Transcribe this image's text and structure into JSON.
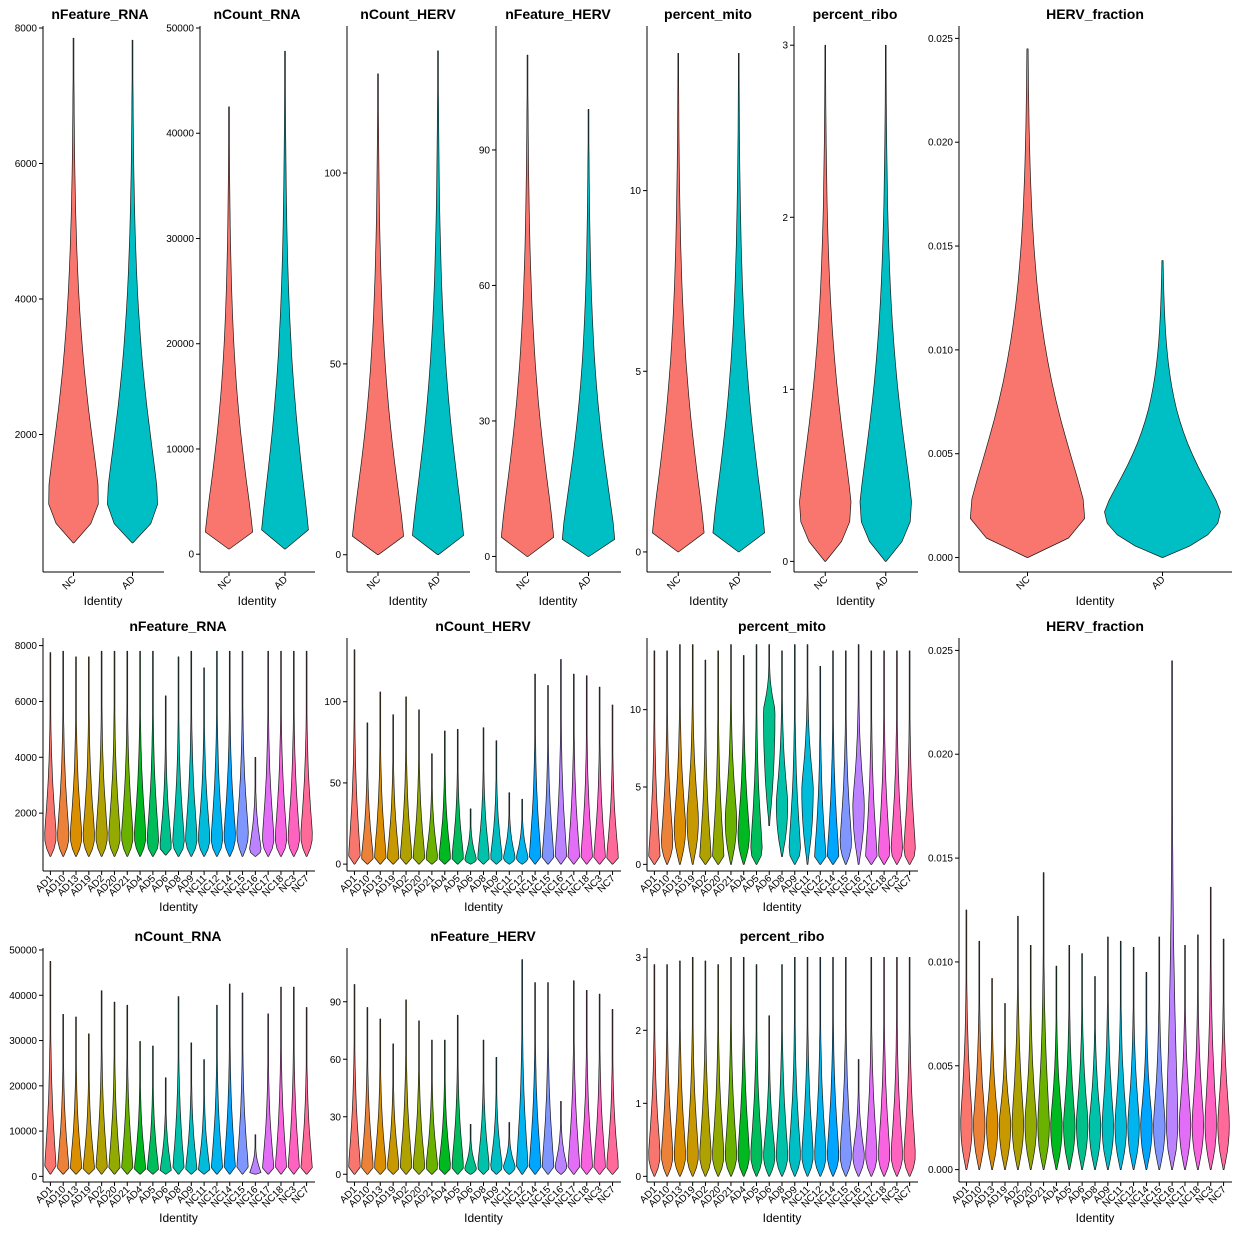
{
  "chart_data": [
    {
      "type": "violin",
      "id": "top-nFeature_RNA",
      "title": "nFeature_RNA",
      "xlabel": "Identity",
      "ylim": [
        0,
        8000
      ],
      "yticks": [
        2000,
        4000,
        6000,
        8000
      ],
      "ytick_labels": [
        "2000",
        "4000",
        "6000",
        "8000"
      ],
      "categories": [
        "NC",
        "AD"
      ],
      "colors": [
        "#F8766D",
        "#00BFC4"
      ],
      "min": [
        400,
        400
      ],
      "max": [
        7850,
        7820
      ],
      "peak": [
        1100,
        1050
      ]
    },
    {
      "type": "violin",
      "id": "top-nCount_RNA",
      "title": "nCount_RNA",
      "xlabel": "Identity",
      "ylim": [
        -1500,
        50000
      ],
      "yticks": [
        0,
        10000,
        20000,
        30000,
        40000,
        50000
      ],
      "ytick_labels": [
        "0",
        "10000",
        "20000",
        "30000",
        "40000",
        "50000"
      ],
      "categories": [
        "NC",
        "AD"
      ],
      "colors": [
        "#F8766D",
        "#00BFC4"
      ],
      "min": [
        500,
        500
      ],
      "max": [
        42500,
        47800
      ],
      "peak": [
        1600,
        1400
      ]
    },
    {
      "type": "violin",
      "id": "top-nCount_HERV",
      "title": "nCount_HERV",
      "xlabel": "Identity",
      "ylim": [
        -4,
        138
      ],
      "yticks": [
        0,
        50,
        100
      ],
      "ytick_labels": [
        "0",
        "50",
        "100"
      ],
      "categories": [
        "NC",
        "AD"
      ],
      "colors": [
        "#F8766D",
        "#00BFC4"
      ],
      "min": [
        0,
        0
      ],
      "max": [
        126,
        132
      ],
      "peak": [
        4,
        4
      ]
    },
    {
      "type": "violin",
      "id": "top-nFeature_HERV",
      "title": "nFeature_HERV",
      "xlabel": "Identity",
      "ylim": [
        -3,
        117
      ],
      "yticks": [
        0,
        30,
        60,
        90
      ],
      "ytick_labels": [
        "0",
        "30",
        "60",
        "90"
      ],
      "categories": [
        "NC",
        "AD"
      ],
      "colors": [
        "#F8766D",
        "#00BFC4"
      ],
      "min": [
        0,
        0
      ],
      "max": [
        111,
        99
      ],
      "peak": [
        4,
        4
      ]
    },
    {
      "type": "violin",
      "id": "top-percent_mito",
      "title": "percent_mito",
      "xlabel": "Identity",
      "ylim": [
        -0.5,
        14.5
      ],
      "yticks": [
        0,
        5,
        10
      ],
      "ytick_labels": [
        "0",
        "5",
        "10"
      ],
      "categories": [
        "NC",
        "AD"
      ],
      "colors": [
        "#F8766D",
        "#00BFC4"
      ],
      "min": [
        0,
        0
      ],
      "max": [
        13.8,
        13.8
      ],
      "peak": [
        0.45,
        0.45
      ]
    },
    {
      "type": "violin",
      "id": "top-percent_ribo",
      "title": "percent_ribo",
      "xlabel": "Identity",
      "ylim": [
        -0.05,
        3.1
      ],
      "yticks": [
        0,
        1,
        2,
        3
      ],
      "ytick_labels": [
        "0",
        "1",
        "2",
        "3"
      ],
      "categories": [
        "NC",
        "AD"
      ],
      "colors": [
        "#F8766D",
        "#00BFC4"
      ],
      "min": [
        0,
        0
      ],
      "max": [
        3.0,
        3.0
      ],
      "peak": [
        0.32,
        0.32
      ]
    },
    {
      "type": "violin",
      "id": "top-HERV_fraction",
      "title": "HERV_fraction",
      "xlabel": "Identity",
      "ylim": [
        -0.0006,
        0.0255
      ],
      "yticks": [
        0,
        0.005,
        0.01,
        0.015,
        0.02,
        0.025
      ],
      "ytick_labels": [
        "0.000",
        "0.005",
        "0.010",
        "0.015",
        "0.020",
        "0.025"
      ],
      "categories": [
        "NC",
        "AD"
      ],
      "colors": [
        "#F8766D",
        "#00BFC4"
      ],
      "min": [
        0,
        0
      ],
      "max": [
        0.0245,
        0.0143
      ],
      "peak": [
        0.0022,
        0.0022
      ]
    },
    {
      "type": "violin",
      "id": "mid-nFeature_RNA",
      "title": "nFeature_RNA",
      "xlabel": "Identity",
      "ylim": [
        0,
        8200
      ],
      "yticks": [
        2000,
        4000,
        6000,
        8000
      ],
      "ytick_labels": [
        "2000",
        "4000",
        "6000",
        "8000"
      ],
      "categories": [
        "AD1",
        "AD10",
        "AD13",
        "AD19",
        "AD2",
        "AD20",
        "AD21",
        "AD4",
        "AD5",
        "AD6",
        "AD8",
        "AD9",
        "NC11",
        "NC12",
        "NC14",
        "NC15",
        "NC16",
        "NC17",
        "NC18",
        "NC3",
        "NC7"
      ],
      "colors": [
        "#F8766D",
        "#EC8239",
        "#DB8E00",
        "#C79800",
        "#AFA100",
        "#93AA00",
        "#6BB100",
        "#00B81F",
        "#00BD5C",
        "#00C08B",
        "#00C1AA",
        "#00BFC4",
        "#00BBDA",
        "#00B4EF",
        "#00A5FF",
        "#7F96FF",
        "#BB83FF",
        "#E26EF7",
        "#F863DF",
        "#FF62BF",
        "#FF6A9A"
      ],
      "min": [
        450,
        450,
        450,
        450,
        450,
        450,
        450,
        450,
        450,
        500,
        450,
        450,
        450,
        450,
        450,
        450,
        450,
        450,
        450,
        450,
        450
      ],
      "max": [
        7750,
        7800,
        7600,
        7600,
        7800,
        7800,
        7800,
        7800,
        7800,
        6200,
        7600,
        7800,
        7200,
        7800,
        7800,
        7800,
        4000,
        7800,
        7800,
        7800,
        7800
      ],
      "peak": [
        1200,
        1200,
        1200,
        1200,
        1200,
        1200,
        1200,
        1200,
        1000,
        800,
        1000,
        1100,
        1100,
        1100,
        1200,
        1300,
        700,
        1100,
        1100,
        1100,
        1200
      ]
    },
    {
      "type": "violin",
      "id": "mid-nCount_HERV",
      "title": "nCount_HERV",
      "xlabel": "Identity",
      "ylim": [
        -3,
        138
      ],
      "yticks": [
        0,
        50,
        100
      ],
      "ytick_labels": [
        "0",
        "50",
        "100"
      ],
      "categories": [
        "AD1",
        "AD10",
        "AD13",
        "AD19",
        "AD2",
        "AD20",
        "AD21",
        "AD4",
        "AD5",
        "AD6",
        "AD8",
        "AD9",
        "NC11",
        "NC12",
        "NC14",
        "NC15",
        "NC16",
        "NC17",
        "NC18",
        "NC3",
        "NC7"
      ],
      "colors": [
        "#F8766D",
        "#EC8239",
        "#DB8E00",
        "#C79800",
        "#AFA100",
        "#93AA00",
        "#6BB100",
        "#00B81F",
        "#00BD5C",
        "#00C08B",
        "#00C1AA",
        "#00BFC4",
        "#00BBDA",
        "#00B4EF",
        "#00A5FF",
        "#7F96FF",
        "#BB83FF",
        "#E26EF7",
        "#F863DF",
        "#FF62BF",
        "#FF6A9A"
      ],
      "min": [
        0,
        0,
        0,
        0,
        0,
        0,
        0,
        0,
        0,
        0,
        0,
        0,
        0,
        0,
        0,
        0,
        0,
        0,
        0,
        0,
        0
      ],
      "max": [
        132,
        87,
        106,
        92,
        103,
        95,
        68,
        82,
        83,
        34,
        84,
        76,
        44,
        40,
        117,
        110,
        126,
        117,
        116,
        109,
        98
      ],
      "peak": [
        4,
        4,
        4,
        4,
        4,
        4,
        4,
        4,
        4,
        3,
        4,
        4,
        4,
        4,
        4,
        4,
        4,
        4,
        4,
        4,
        4
      ]
    },
    {
      "type": "violin",
      "id": "mid-percent_mito",
      "title": "percent_mito",
      "xlabel": "Identity",
      "ylim": [
        -0.3,
        14.5
      ],
      "yticks": [
        0,
        5,
        10
      ],
      "ytick_labels": [
        "0",
        "5",
        "10"
      ],
      "categories": [
        "AD1",
        "AD10",
        "AD13",
        "AD19",
        "AD2",
        "AD20",
        "AD21",
        "AD4",
        "AD5",
        "AD6",
        "AD8",
        "AD9",
        "NC11",
        "NC12",
        "NC14",
        "NC15",
        "NC16",
        "NC17",
        "NC18",
        "NC3",
        "NC7"
      ],
      "colors": [
        "#F8766D",
        "#EC8239",
        "#DB8E00",
        "#C79800",
        "#AFA100",
        "#93AA00",
        "#6BB100",
        "#00B81F",
        "#00BD5C",
        "#00C08B",
        "#00C1AA",
        "#00BFC4",
        "#00BBDA",
        "#00B4EF",
        "#00A5FF",
        "#7F96FF",
        "#BB83FF",
        "#E26EF7",
        "#F863DF",
        "#FF62BF",
        "#FF6A9A"
      ],
      "min": [
        0,
        0,
        0,
        0,
        0,
        0,
        0,
        0,
        0,
        2.5,
        0.5,
        0,
        0,
        0,
        0,
        0,
        0,
        0,
        0,
        0,
        0
      ],
      "max": [
        13.8,
        13.8,
        14.2,
        14.2,
        13.2,
        13.8,
        14.2,
        13.5,
        14.2,
        14.2,
        13.8,
        14.2,
        14.2,
        12.8,
        13.8,
        13.8,
        14.2,
        13.8,
        13.8,
        13.8,
        13.8
      ],
      "peak": [
        0.4,
        1.5,
        2.5,
        3,
        0.4,
        0.5,
        3,
        2,
        1,
        10,
        4,
        1,
        5,
        0.4,
        0.5,
        1.5,
        4,
        0.5,
        0.8,
        1,
        1
      ]
    },
    {
      "type": "violin",
      "id": "mid-HERV_fraction",
      "title": "HERV_fraction",
      "xlabel": "Identity",
      "ylim": [
        -0.0005,
        0.0255
      ],
      "yticks": [
        0,
        0.005,
        0.01,
        0.015,
        0.02,
        0.025
      ],
      "ytick_labels": [
        "0.000",
        "0.005",
        "0.010",
        "0.015",
        "0.020",
        "0.025"
      ],
      "categories": [
        "AD1",
        "AD10",
        "AD13",
        "AD19",
        "AD2",
        "AD20",
        "AD21",
        "AD4",
        "AD5",
        "AD6",
        "AD8",
        "AD9",
        "NC11",
        "NC12",
        "NC14",
        "NC15",
        "NC16",
        "NC17",
        "NC18",
        "NC3",
        "NC7"
      ],
      "colors": [
        "#F8766D",
        "#EC8239",
        "#DB8E00",
        "#C79800",
        "#AFA100",
        "#93AA00",
        "#6BB100",
        "#00B81F",
        "#00BD5C",
        "#00C08B",
        "#00C1AA",
        "#00BFC4",
        "#00BBDA",
        "#00B4EF",
        "#00A5FF",
        "#7F96FF",
        "#BB83FF",
        "#E26EF7",
        "#F863DF",
        "#FF62BF",
        "#FF6A9A"
      ],
      "min": [
        0,
        0,
        0,
        0,
        0,
        0,
        0,
        0,
        0,
        0,
        0,
        0,
        0,
        0,
        0,
        0,
        0,
        0,
        0,
        0,
        0
      ],
      "max": [
        0.0125,
        0.011,
        0.0092,
        0.008,
        0.0122,
        0.0108,
        0.0143,
        0.0098,
        0.0108,
        0.0104,
        0.0093,
        0.0112,
        0.011,
        0.0107,
        0.0095,
        0.0112,
        0.0245,
        0.0108,
        0.0113,
        0.0136,
        0.0111
      ],
      "peak": [
        0.0023,
        0.0023,
        0.0023,
        0.0023,
        0.0023,
        0.0023,
        0.0022,
        0.0022,
        0.0022,
        0.0023,
        0.0022,
        0.0022,
        0.0022,
        0.0022,
        0.0022,
        0.0022,
        0.0022,
        0.0023,
        0.0023,
        0.0023,
        0.0023
      ]
    },
    {
      "type": "violin",
      "id": "bot-nCount_RNA",
      "title": "nCount_RNA",
      "xlabel": "Identity",
      "ylim": [
        -800,
        50000
      ],
      "yticks": [
        0,
        10000,
        20000,
        30000,
        40000,
        50000
      ],
      "ytick_labels": [
        "0",
        "10000",
        "20000",
        "30000",
        "40000",
        "50000"
      ],
      "categories": [
        "AD1",
        "AD10",
        "AD13",
        "AD19",
        "AD2",
        "AD20",
        "AD21",
        "AD4",
        "AD5",
        "AD6",
        "AD8",
        "AD9",
        "NC11",
        "NC12",
        "NC14",
        "NC15",
        "NC16",
        "NC17",
        "NC18",
        "NC3",
        "NC7"
      ],
      "colors": [
        "#F8766D",
        "#EC8239",
        "#DB8E00",
        "#C79800",
        "#AFA100",
        "#93AA00",
        "#6BB100",
        "#00B81F",
        "#00BD5C",
        "#00C08B",
        "#00C1AA",
        "#00BFC4",
        "#00BBDA",
        "#00B4EF",
        "#00A5FF",
        "#7F96FF",
        "#BB83FF",
        "#E26EF7",
        "#F863DF",
        "#FF62BF",
        "#FF6A9A"
      ],
      "min": [
        500,
        500,
        500,
        500,
        500,
        500,
        500,
        500,
        500,
        500,
        500,
        500,
        500,
        500,
        500,
        500,
        500,
        500,
        500,
        500,
        500
      ],
      "max": [
        47500,
        35800,
        35200,
        31500,
        41000,
        38500,
        37800,
        29800,
        28800,
        21800,
        39700,
        29500,
        25800,
        37800,
        42500,
        40500,
        9200,
        35900,
        41800,
        41800,
        37300
      ],
      "peak": [
        1500,
        1500,
        1500,
        1500,
        1500,
        1400,
        1400,
        1300,
        1200,
        900,
        1100,
        1200,
        1200,
        1300,
        1500,
        1600,
        700,
        1300,
        1300,
        1300,
        1500
      ]
    },
    {
      "type": "violin",
      "id": "bot-nFeature_HERV",
      "title": "nFeature_HERV",
      "xlabel": "Identity",
      "ylim": [
        -3,
        117
      ],
      "yticks": [
        0,
        30,
        60,
        90
      ],
      "ytick_labels": [
        "0",
        "30",
        "60",
        "90"
      ],
      "categories": [
        "AD1",
        "AD10",
        "AD13",
        "AD19",
        "AD2",
        "AD20",
        "AD21",
        "AD4",
        "AD5",
        "AD6",
        "AD8",
        "AD9",
        "NC11",
        "NC12",
        "NC14",
        "NC15",
        "NC16",
        "NC17",
        "NC18",
        "NC3",
        "NC7"
      ],
      "colors": [
        "#F8766D",
        "#EC8239",
        "#DB8E00",
        "#C79800",
        "#AFA100",
        "#93AA00",
        "#6BB100",
        "#00B81F",
        "#00BD5C",
        "#00C08B",
        "#00C1AA",
        "#00BFC4",
        "#00BBDA",
        "#00B4EF",
        "#00A5FF",
        "#7F96FF",
        "#BB83FF",
        "#E26EF7",
        "#F863DF",
        "#FF62BF",
        "#FF6A9A"
      ],
      "min": [
        0,
        0,
        0,
        0,
        0,
        0,
        0,
        0,
        0,
        0,
        0,
        0,
        0,
        0,
        0,
        0,
        0,
        0,
        0,
        0,
        0
      ],
      "max": [
        99,
        87,
        81,
        68,
        91,
        80,
        70,
        70,
        83,
        26,
        70,
        61,
        27,
        112,
        100,
        100,
        38,
        101,
        96,
        94,
        86
      ],
      "peak": [
        4,
        4,
        4,
        4,
        4,
        4,
        4,
        4,
        4,
        3,
        4,
        4,
        4,
        4,
        4,
        4,
        4,
        4,
        4,
        4,
        4
      ]
    },
    {
      "type": "violin",
      "id": "bot-percent_ribo",
      "title": "percent_ribo",
      "xlabel": "Identity",
      "ylim": [
        -0.05,
        3.1
      ],
      "yticks": [
        0,
        1,
        2,
        3
      ],
      "ytick_labels": [
        "0",
        "1",
        "2",
        "3"
      ],
      "categories": [
        "AD1",
        "AD10",
        "AD13",
        "AD19",
        "AD2",
        "AD20",
        "AD21",
        "AD4",
        "AD5",
        "AD6",
        "AD8",
        "AD9",
        "NC11",
        "NC12",
        "NC14",
        "NC15",
        "NC16",
        "NC17",
        "NC18",
        "NC3",
        "NC7"
      ],
      "colors": [
        "#F8766D",
        "#EC8239",
        "#DB8E00",
        "#C79800",
        "#AFA100",
        "#93AA00",
        "#6BB100",
        "#00B81F",
        "#00BD5C",
        "#00C08B",
        "#00C1AA",
        "#00BFC4",
        "#00BBDA",
        "#00B4EF",
        "#00A5FF",
        "#7F96FF",
        "#BB83FF",
        "#E26EF7",
        "#F863DF",
        "#FF62BF",
        "#FF6A9A"
      ],
      "min": [
        0,
        0,
        0,
        0,
        0,
        0,
        0,
        0,
        0,
        0,
        0,
        0,
        0,
        0,
        0,
        0,
        0,
        0,
        0,
        0,
        0
      ],
      "max": [
        2.9,
        2.9,
        2.95,
        3.0,
        2.95,
        2.9,
        3.0,
        3.0,
        2.9,
        2.2,
        2.9,
        3.0,
        3.0,
        3.0,
        3.0,
        3.0,
        1.6,
        3.0,
        3.0,
        3.0,
        3.0
      ],
      "peak": [
        0.3,
        0.3,
        0.3,
        0.3,
        0.3,
        0.3,
        0.3,
        0.3,
        0.3,
        0.3,
        0.3,
        0.3,
        0.3,
        0.3,
        0.3,
        0.3,
        0.3,
        0.3,
        0.3,
        0.3,
        0.3
      ]
    }
  ]
}
